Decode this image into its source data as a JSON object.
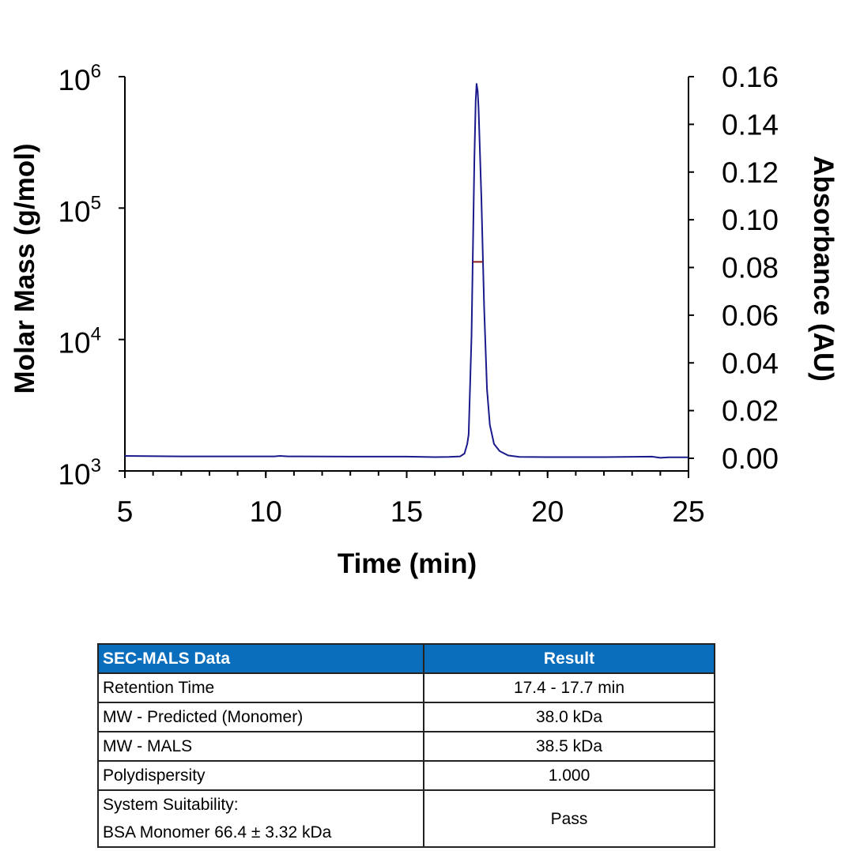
{
  "chart_data": {
    "type": "line",
    "xlabel": "Time (min)",
    "ylabel_left": "Molar Mass (g/mol)",
    "ylabel_right": "Absorbance (AU)",
    "xlim": [
      5,
      25
    ],
    "ylim_left": [
      1000,
      1000000
    ],
    "left_scale": "log",
    "ylim_right": [
      0,
      0.16
    ],
    "grid": false,
    "x_ticks": [
      "5",
      "10",
      "15",
      "20",
      "25"
    ],
    "x_tick_values": [
      5,
      10,
      15,
      20,
      25
    ],
    "x_minor_step": 1,
    "left_ticks": [
      {
        "value": 1000000,
        "base": "10",
        "exp": "6"
      },
      {
        "value": 100000,
        "base": "10",
        "exp": "5"
      },
      {
        "value": 10000,
        "base": "10",
        "exp": "4"
      },
      {
        "value": 1000,
        "base": "10",
        "exp": "3"
      }
    ],
    "right_ticks": [
      "0.16",
      "0.14",
      "0.12",
      "0.10",
      "0.08",
      "0.06",
      "0.04",
      "0.02",
      "0.00"
    ],
    "right_tick_values": [
      0.16,
      0.14,
      0.12,
      0.1,
      0.08,
      0.06,
      0.04,
      0.02,
      0.0
    ],
    "series": [
      {
        "axis": "right",
        "color": "#1a1a8c",
        "x": [
          5,
          7,
          9,
          10.3,
          10.5,
          10.8,
          13,
          15,
          16,
          16.5,
          16.9,
          17.05,
          17.15,
          17.2,
          17.3,
          17.4,
          17.45,
          17.48,
          17.52,
          17.55,
          17.65,
          17.75,
          17.85,
          17.95,
          18.1,
          18.3,
          18.6,
          19,
          20,
          22,
          23.7,
          24,
          24.3,
          25
        ],
        "y": [
          0.001,
          0.0008,
          0.0008,
          0.0008,
          0.001,
          0.0008,
          0.0007,
          0.0007,
          0.0005,
          0.0006,
          0.0008,
          0.002,
          0.006,
          0.01,
          0.051,
          0.125,
          0.15,
          0.157,
          0.154,
          0.147,
          0.109,
          0.063,
          0.029,
          0.014,
          0.006,
          0.003,
          0.0012,
          0.0006,
          0.0005,
          0.0005,
          0.0007,
          0.0002,
          0.0004,
          0.0004
        ]
      },
      {
        "axis": "left",
        "color": "#8b1a1a",
        "x": [
          17.35,
          17.7
        ],
        "y": [
          39000,
          39000
        ]
      }
    ]
  },
  "table": {
    "headers": [
      "SEC-MALS Data",
      "Result"
    ],
    "rows": [
      {
        "label": "Retention Time",
        "value": "17.4 - 17.7 min"
      },
      {
        "label": "MW - Predicted (Monomer)",
        "value": "38.0 kDa"
      },
      {
        "label": "MW - MALS",
        "value": "38.5 kDa"
      },
      {
        "label": "Polydispersity",
        "value": "1.000"
      },
      {
        "label": "System Suitability:",
        "label2": "BSA Monomer 66.4 ± 3.32 kDa",
        "value": "Pass"
      }
    ],
    "header_color": "#0a6ebd"
  }
}
